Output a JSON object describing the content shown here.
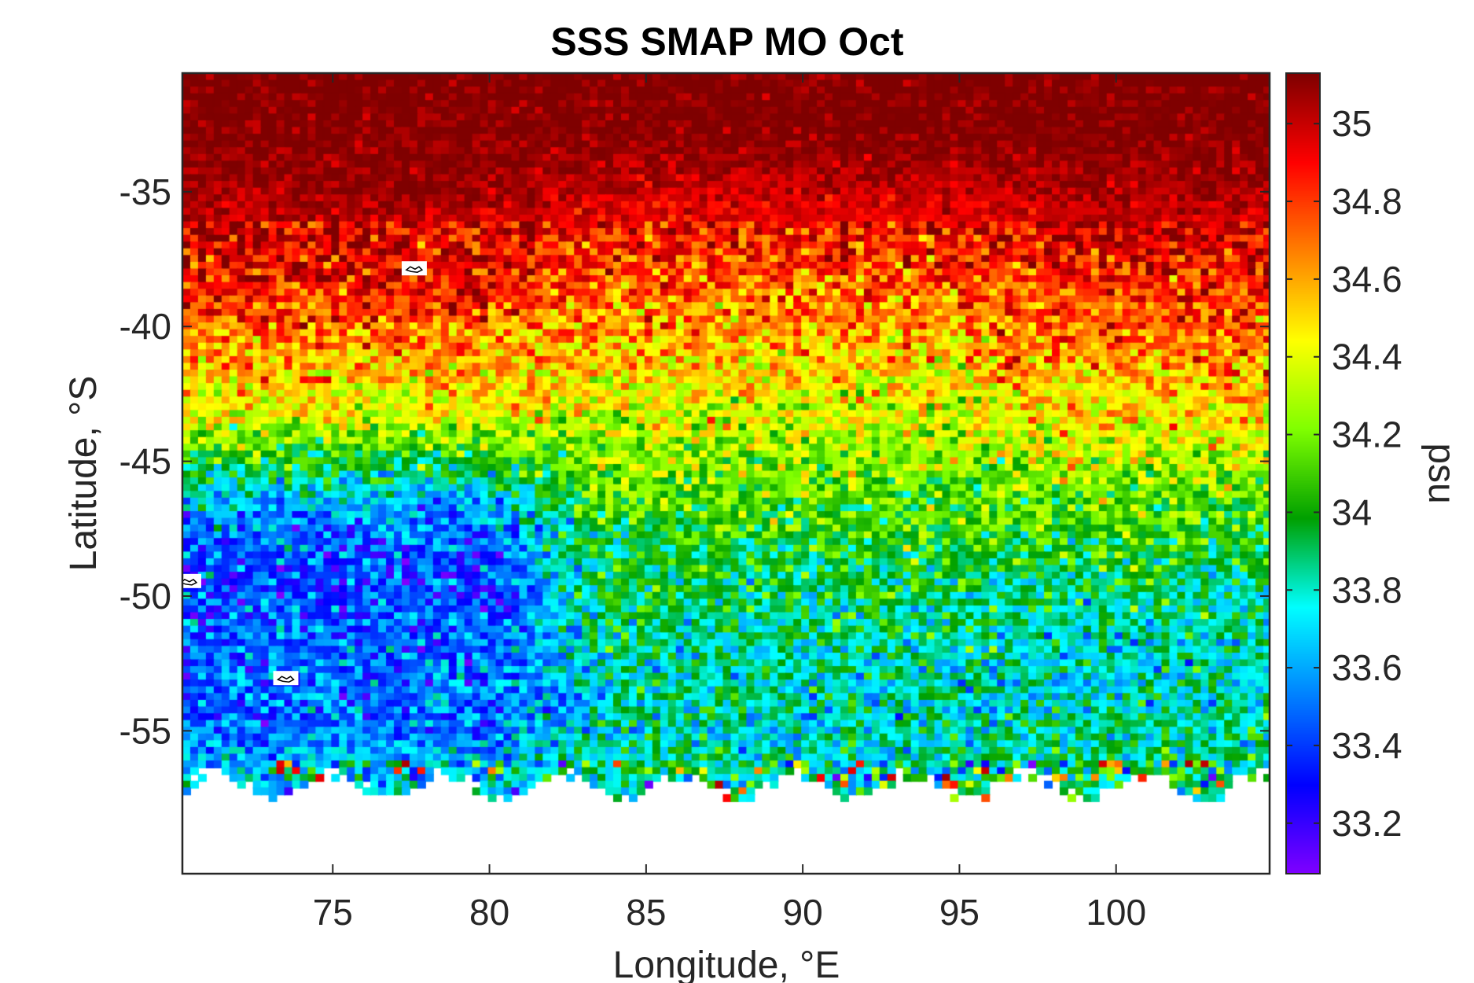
{
  "chart_data": {
    "type": "heatmap",
    "title": "SSS SMAP MO Oct",
    "xlabel": "Longitude, °E",
    "ylabel": "Latitude, °S",
    "colorbar_label": "psu",
    "xlim": [
      70.2,
      104.9
    ],
    "ylim": [
      -60.3,
      -30.6
    ],
    "x_ticks": [
      75,
      80,
      85,
      90,
      95,
      100
    ],
    "x_tick_labels": [
      "75",
      "80",
      "85",
      "90",
      "95",
      "100"
    ],
    "y_ticks": [
      -35,
      -40,
      -45,
      -50,
      -55
    ],
    "y_tick_labels": [
      "-35",
      "-40",
      "-45",
      "-50",
      "-55"
    ],
    "clim": [
      33.07,
      35.13
    ],
    "colorbar_ticks": [
      35,
      34.8,
      34.6,
      34.4,
      34.2,
      34,
      33.8,
      33.6,
      33.4,
      33.2
    ],
    "colorbar_tick_labels": [
      "35",
      "34.8",
      "34.6",
      "34.4",
      "34.2",
      "34",
      "33.8",
      "33.6",
      "33.4",
      "33.2"
    ],
    "colormap": [
      "#7f0000",
      "#ff0000",
      "#ff8000",
      "#ffff00",
      "#80ff00",
      "#00a000",
      "#00ffff",
      "#0080ff",
      "#0000ff",
      "#8000ff"
    ],
    "grid_spacing_deg": 0.25,
    "data_extent_lat_south": -56.9,
    "salinity_by_latitude": {
      "lat": [
        -31,
        -33,
        -35,
        -37,
        -39,
        -41,
        -43,
        -45,
        -47,
        -49,
        -51,
        -53,
        -55,
        -56.5
      ],
      "west_70_80E": [
        35.15,
        35.13,
        35.08,
        34.95,
        34.85,
        34.6,
        34.45,
        34.0,
        33.55,
        33.4,
        33.45,
        33.5,
        33.5,
        33.7
      ],
      "central_80_95E": [
        35.15,
        35.13,
        35.0,
        34.85,
        34.7,
        34.55,
        34.4,
        34.25,
        34.1,
        33.95,
        33.9,
        33.8,
        33.8,
        33.85
      ],
      "east_95_105E": [
        35.15,
        35.13,
        35.05,
        34.95,
        34.8,
        34.65,
        34.5,
        34.3,
        34.1,
        33.95,
        33.8,
        33.75,
        33.85,
        33.9
      ]
    },
    "islands": [
      {
        "lon": 77.6,
        "lat": -37.9
      },
      {
        "lon": 70.4,
        "lat": -49.5
      },
      {
        "lon": 73.5,
        "lat": -53.1
      }
    ]
  }
}
